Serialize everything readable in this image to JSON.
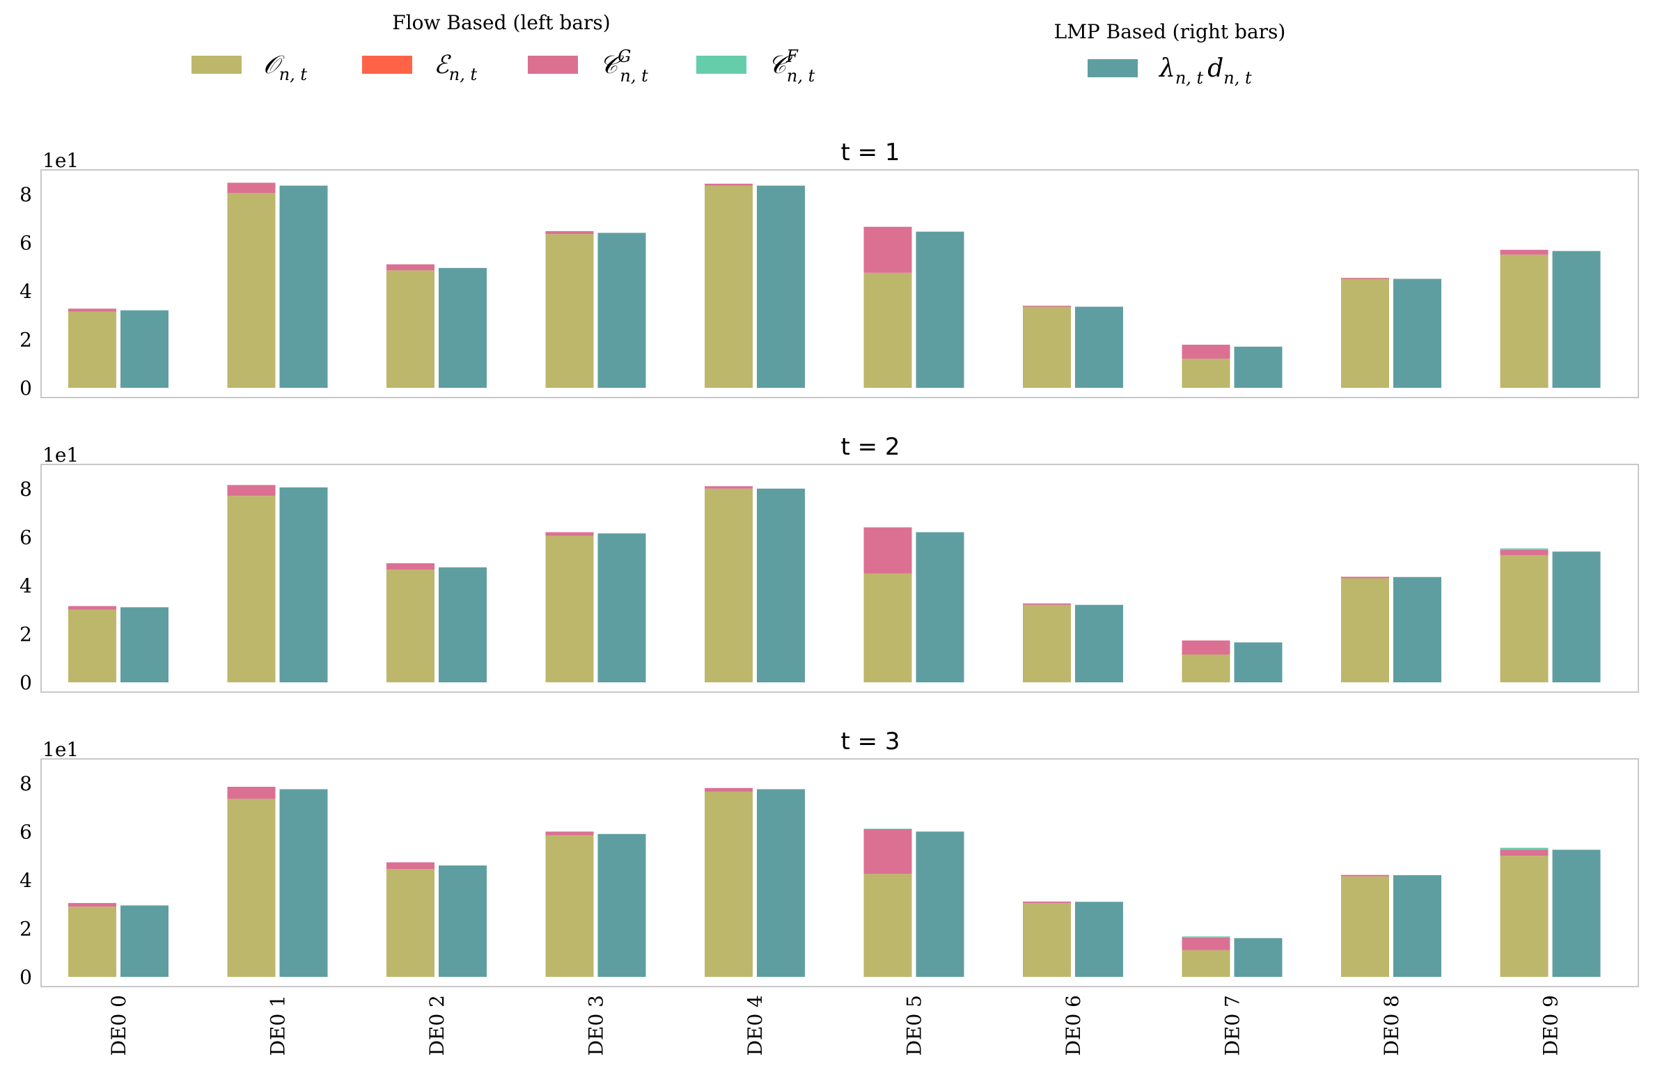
{
  "chart_data": {
    "type": "bar",
    "multiplier_label": "1e1",
    "categories": [
      "DE0 0",
      "DE0 1",
      "DE0 2",
      "DE0 3",
      "DE0 4",
      "DE0 5",
      "DE0 6",
      "DE0 7",
      "DE0 8",
      "DE0 9"
    ],
    "ylim": [
      0,
      9
    ],
    "yticks": [
      0,
      2,
      4,
      6,
      8
    ],
    "grid": false,
    "legend": {
      "placement": "top",
      "groups": [
        {
          "title": "Flow Based (left bars)",
          "items": [
            {
              "key": "O",
              "base": "𝒪",
              "sup": "",
              "sub": "n, t",
              "color": "#bdb76b"
            },
            {
              "key": "E",
              "base": "ℰ",
              "sup": "",
              "sub": "n, t",
              "color": "#ff6347"
            },
            {
              "key": "CG",
              "base": "𝒞",
              "sup": "G",
              "sub": "n, t",
              "color": "#db7093"
            },
            {
              "key": "CF",
              "base": "𝒞",
              "sup": "F",
              "sub": "n, t",
              "color": "#66cdaa"
            }
          ]
        },
        {
          "title": "LMP Based (right bars)",
          "items": [
            {
              "key": "LMP",
              "base": "λ",
              "sub": "n, t",
              "base2": "d",
              "sub2": "n, t",
              "color": "#5f9ea0"
            }
          ]
        }
      ]
    },
    "panels": [
      {
        "title": "t = 1",
        "series": [
          {
            "name": "O",
            "values": [
              3.15,
              8.05,
              4.85,
              6.35,
              8.35,
              4.75,
              3.35,
              1.2,
              4.5,
              5.5
            ]
          },
          {
            "name": "E",
            "values": [
              0,
              0,
              0,
              0,
              0,
              0,
              0,
              0,
              0,
              0
            ]
          },
          {
            "name": "CG",
            "values": [
              0.12,
              0.42,
              0.25,
              0.12,
              0.08,
              1.9,
              0.04,
              0.58,
              0.04,
              0.2
            ]
          },
          {
            "name": "CF",
            "values": [
              0,
              0,
              0,
              0,
              0,
              0,
              0,
              0,
              0,
              0
            ]
          },
          {
            "name": "LMP",
            "values": [
              3.2,
              8.35,
              4.95,
              6.4,
              8.35,
              6.45,
              3.35,
              1.7,
              4.5,
              5.65
            ]
          }
        ]
      },
      {
        "title": "t = 2",
        "series": [
          {
            "name": "O",
            "values": [
              3.0,
              7.7,
              4.65,
              6.05,
              8.0,
              4.5,
              3.2,
              1.15,
              4.3,
              5.25
            ]
          },
          {
            "name": "E",
            "values": [
              0,
              0,
              0,
              0,
              0,
              0,
              0,
              0,
              0,
              0
            ]
          },
          {
            "name": "CG",
            "values": [
              0.15,
              0.45,
              0.27,
              0.15,
              0.1,
              1.9,
              0.06,
              0.58,
              0.06,
              0.22
            ]
          },
          {
            "name": "CF",
            "values": [
              0,
              0,
              0,
              0,
              0,
              0,
              0,
              0,
              0,
              0.06
            ]
          },
          {
            "name": "LMP",
            "values": [
              3.1,
              8.05,
              4.75,
              6.15,
              8.0,
              6.2,
              3.2,
              1.65,
              4.35,
              5.4
            ]
          }
        ]
      },
      {
        "title": "t = 3",
        "series": [
          {
            "name": "O",
            "values": [
              2.9,
              7.35,
              4.45,
              5.85,
              7.65,
              4.25,
              3.05,
              1.1,
              4.15,
              5.0
            ]
          },
          {
            "name": "E",
            "values": [
              0,
              0,
              0,
              0,
              0,
              0,
              0,
              0,
              0,
              0
            ]
          },
          {
            "name": "CG",
            "values": [
              0.15,
              0.5,
              0.28,
              0.15,
              0.15,
              1.85,
              0.06,
              0.52,
              0.06,
              0.25
            ]
          },
          {
            "name": "CF",
            "values": [
              0,
              0,
              0,
              0,
              0,
              0.02,
              0,
              0.05,
              0,
              0.08
            ]
          },
          {
            "name": "LMP",
            "values": [
              2.95,
              7.75,
              4.6,
              5.9,
              7.75,
              6.0,
              3.1,
              1.6,
              4.2,
              5.25
            ]
          }
        ]
      }
    ]
  }
}
